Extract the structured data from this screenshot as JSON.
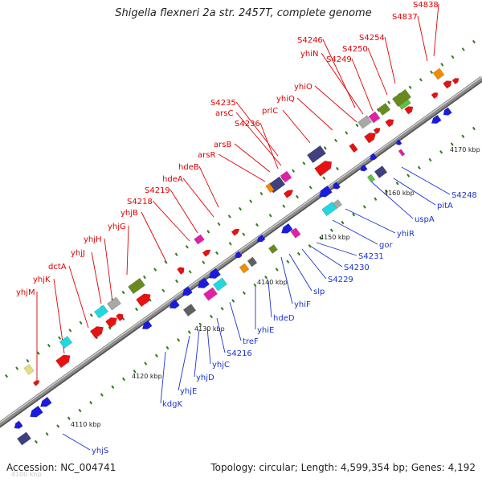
{
  "title": "Shigella flexneri 2a str. 2457T, complete genome",
  "footer": {
    "accession": "Accession: NC_004741",
    "stats": "Topology: circular; Length: 4,599,354 bp; Genes: 4,192"
  },
  "colors": {
    "forward_label": "#e00000",
    "reverse_label": "#1a33cc",
    "backbone": "#8c8c8c",
    "tick": "#2e7d1a"
  },
  "kbp_labels": [
    "4100 kbp",
    "4110 kbp",
    "4120 kbp",
    "4130 kbp",
    "4140 kbp",
    "4150 kbp",
    "4160 kbp",
    "4170 kbp"
  ],
  "forward_genes": [
    "yhjM",
    "yhjK",
    "dctA",
    "yhjJ",
    "yhjH",
    "yhjG",
    "yhjB",
    "S4218",
    "S4219",
    "hdeA",
    "hdeB",
    "arsR",
    "arsB",
    "S4236",
    "arsC",
    "S4235",
    "prlC",
    "yhiQ",
    "yhiO",
    "yhiN",
    "S4249",
    "S4246",
    "S4250",
    "S4254",
    "S4837",
    "S4838"
  ],
  "reverse_genes": [
    "yhjS",
    "kdgK",
    "yhjE",
    "yhjD",
    "yhjC",
    "S4216",
    "treF",
    "yhiE",
    "hdeD",
    "yhiF",
    "slp",
    "S4229",
    "S4230",
    "S4231",
    "gor",
    "yhiR",
    "uspA",
    "pitA",
    "S4248"
  ]
}
